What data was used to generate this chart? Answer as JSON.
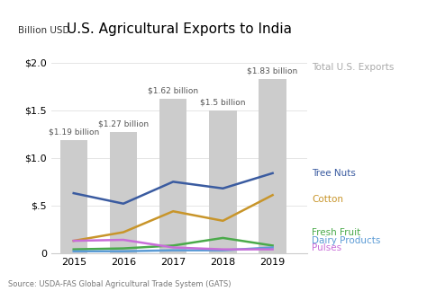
{
  "title": "U.S. Agricultural Exports to India",
  "ylabel": "Billion USD",
  "source": "Source: USDA-FAS Global Agricultural Trade System (GATS)",
  "years": [
    2015,
    2016,
    2017,
    2018,
    2019
  ],
  "bar_values": [
    1.19,
    1.27,
    1.62,
    1.5,
    1.83
  ],
  "bar_labels": [
    "$1.19 billion",
    "$1.27 billion",
    "$1.62 billion",
    "$1.5 billion",
    "$1.83 billion"
  ],
  "bar_color": "#cccccc",
  "lines": {
    "Tree Nuts": {
      "values": [
        0.63,
        0.52,
        0.75,
        0.68,
        0.84
      ],
      "color": "#3a5ba0",
      "linewidth": 1.8
    },
    "Cotton": {
      "values": [
        0.13,
        0.22,
        0.44,
        0.34,
        0.61
      ],
      "color": "#c8952a",
      "linewidth": 1.8
    },
    "Fresh Fruit": {
      "values": [
        0.04,
        0.05,
        0.08,
        0.16,
        0.08
      ],
      "color": "#4aaa4a",
      "linewidth": 1.8
    },
    "Dairy Products": {
      "values": [
        0.02,
        0.02,
        0.03,
        0.03,
        0.06
      ],
      "color": "#5b9bd5",
      "linewidth": 1.8
    },
    "Pulses": {
      "values": [
        0.13,
        0.14,
        0.06,
        0.04,
        0.04
      ],
      "color": "#c86dd8",
      "linewidth": 1.8
    }
  },
  "legend_label": "Total U.S. Exports",
  "ylim": [
    0,
    2.2
  ],
  "yticks": [
    0,
    0.5,
    1.0,
    1.5,
    2.0
  ],
  "ytick_labels": [
    "0",
    "$.5",
    "$1.0",
    "$1.5",
    "$2.0"
  ],
  "background_color": "#ffffff",
  "title_fontsize": 11,
  "axis_label_fontsize": 7.5,
  "legend_fontsize": 7.5,
  "bar_label_fontsize": 6.5,
  "legend_total_color": "#aaaaaa",
  "spine_color": "#cccccc",
  "grid_color": "#e0e0e0",
  "source_fontsize": 6,
  "tick_fontsize": 8
}
